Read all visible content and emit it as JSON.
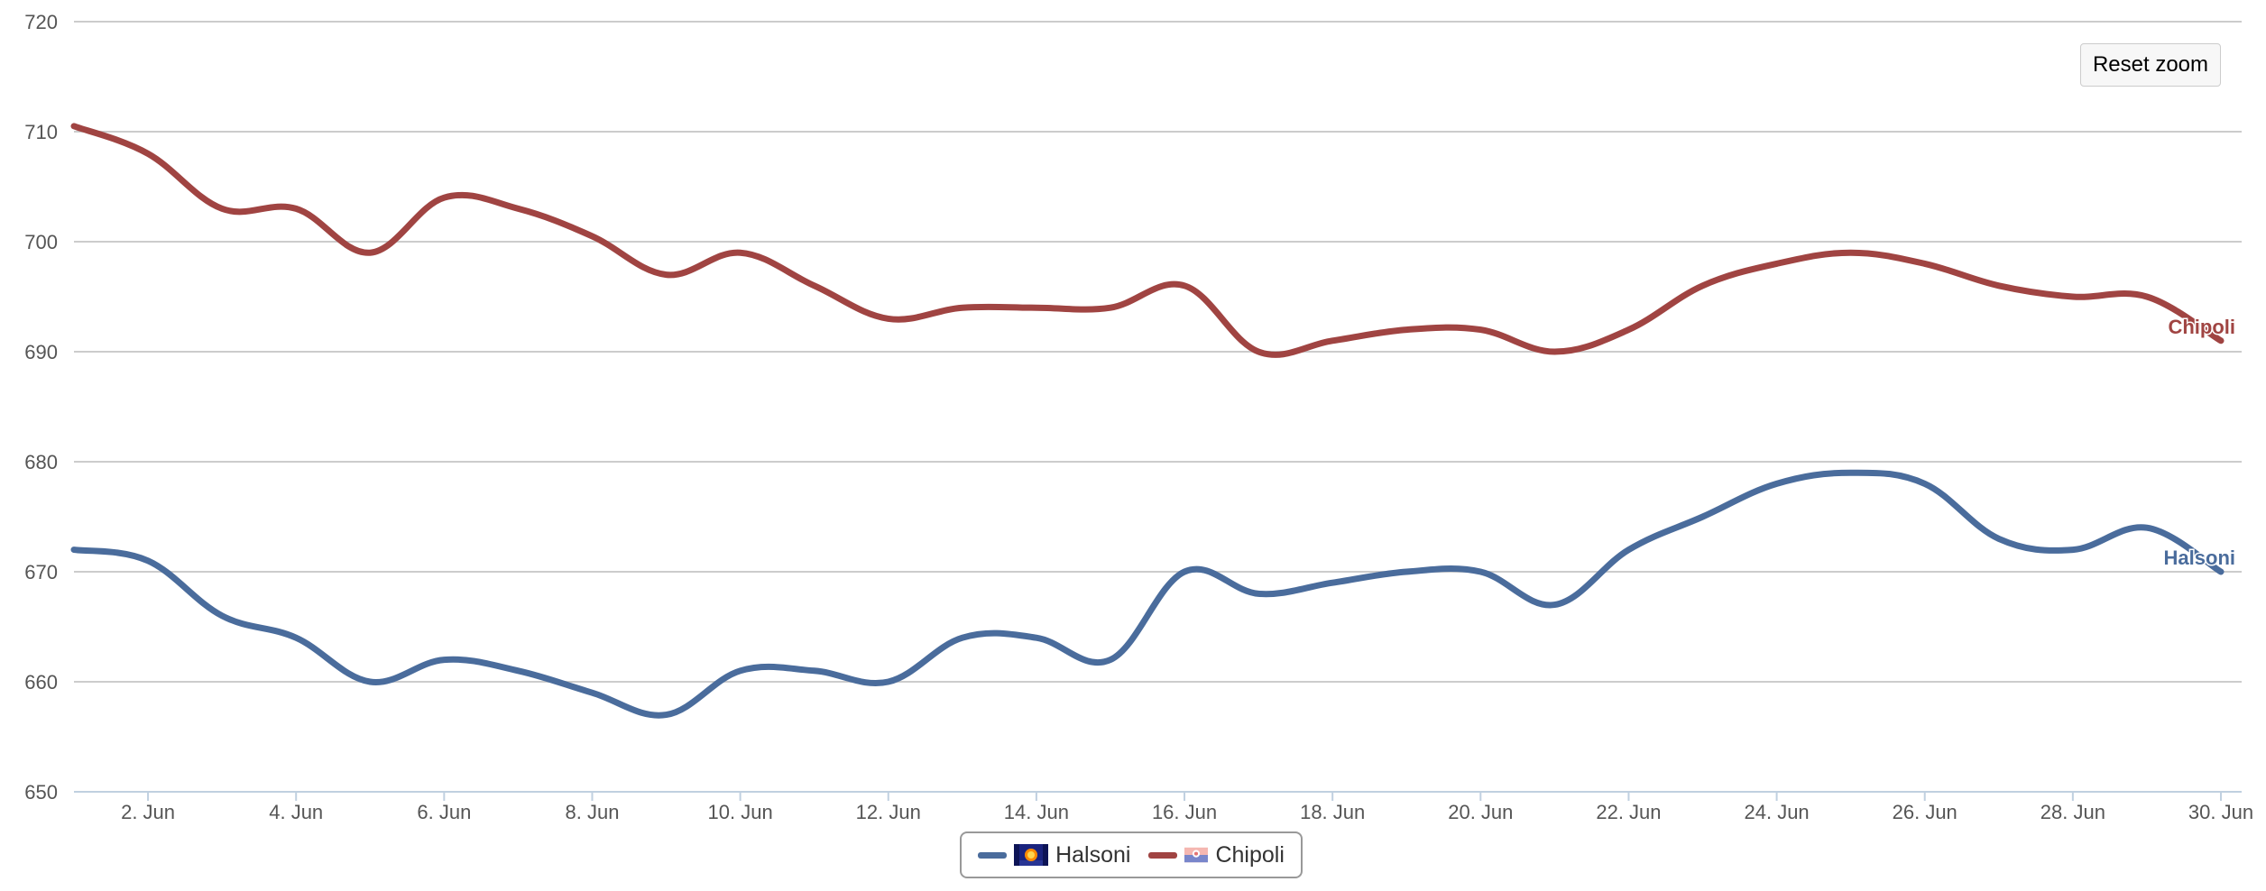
{
  "colors": {
    "halsoni": "#4a6c9c",
    "chipoli": "#a04442",
    "grid": "#cccccc",
    "axis_text": "#555555"
  },
  "reset_zoom_label": "Reset zoom",
  "chart_data": {
    "type": "line",
    "title": "",
    "xlabel": "",
    "ylabel": "",
    "xlim": [
      "2023-06-01",
      "2023-06-30"
    ],
    "ylim": [
      650,
      720
    ],
    "y_ticks": [
      650,
      660,
      670,
      680,
      690,
      700,
      710,
      720
    ],
    "x_ticks": [
      "2. Jun",
      "4. Jun",
      "6. Jun",
      "8. Jun",
      "10. Jun",
      "12. Jun",
      "14. Jun",
      "16. Jun",
      "18. Jun",
      "20. Jun",
      "22. Jun",
      "24. Jun",
      "26. Jun",
      "28. Jun",
      "30. Jun"
    ],
    "grid": true,
    "legend_position": "bottom-center",
    "x": [
      "2023-06-01",
      "2023-06-02",
      "2023-06-03",
      "2023-06-04",
      "2023-06-05",
      "2023-06-06",
      "2023-06-07",
      "2023-06-08",
      "2023-06-09",
      "2023-06-10",
      "2023-06-11",
      "2023-06-12",
      "2023-06-13",
      "2023-06-14",
      "2023-06-15",
      "2023-06-16",
      "2023-06-17",
      "2023-06-18",
      "2023-06-19",
      "2023-06-20",
      "2023-06-21",
      "2023-06-22",
      "2023-06-23",
      "2023-06-24",
      "2023-06-25",
      "2023-06-26",
      "2023-06-27",
      "2023-06-28",
      "2023-06-29",
      "2023-06-30"
    ],
    "series": [
      {
        "name": "Halsoni",
        "end_label": "Halsoni",
        "color": "#4a6c9c",
        "icon": "flag-icon",
        "values": [
          672,
          671,
          666,
          664,
          660,
          662,
          661,
          659,
          657,
          661,
          661,
          660,
          664,
          664,
          662,
          670,
          668,
          669,
          670,
          670,
          667,
          672,
          675,
          678,
          679,
          678,
          673,
          672,
          674,
          670
        ]
      },
      {
        "name": "Chipoli",
        "end_label": "Chipoli",
        "color": "#a04442",
        "icon": "flag-icon",
        "values": [
          710.5,
          708,
          703,
          703,
          699,
          704,
          703,
          700.5,
          697,
          699,
          696,
          693,
          694,
          694,
          694,
          696,
          690,
          691,
          692,
          692,
          690,
          692,
          696,
          698,
          699,
          698,
          696,
          695,
          695,
          691
        ]
      }
    ]
  }
}
